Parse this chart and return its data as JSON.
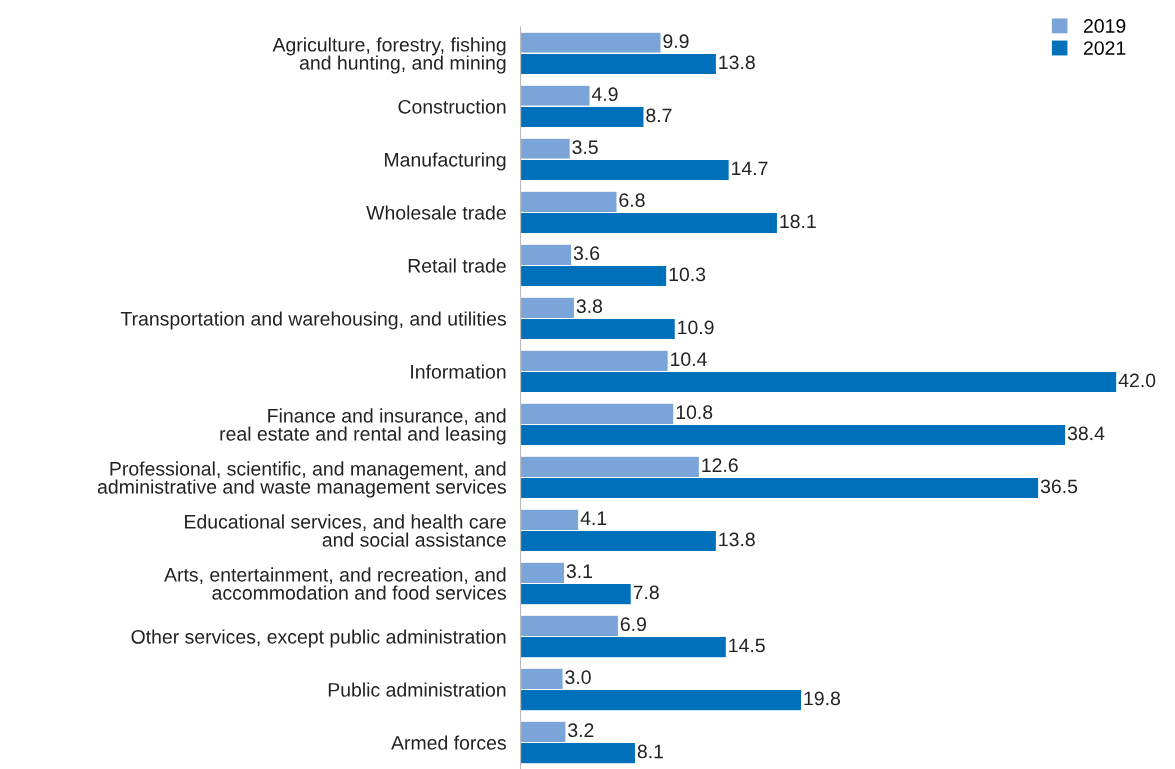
{
  "chart_data": {
    "type": "bar",
    "orientation": "horizontal",
    "legend": "top right",
    "grid": false,
    "categories": [
      "Agriculture, forestry, fishing\nand hunting, and mining",
      "Construction",
      "Manufacturing",
      "Wholesale trade",
      "Retail trade",
      "Transportation and warehousing, and utilities",
      "Information",
      "Finance and insurance, and\nreal estate and rental and leasing",
      "Professional, scientific, and management, and\nadministrative and waste management services",
      "Educational services, and health care\nand social assistance",
      "Arts, entertainment, and recreation, and\naccommodation and food services",
      "Other services, except public administration",
      "Public administration",
      "Armed forces"
    ],
    "series": [
      {
        "name": "2019",
        "color": "#7ba4d8",
        "values": [
          9.9,
          4.9,
          3.5,
          6.8,
          3.6,
          3.8,
          10.4,
          10.8,
          12.6,
          4.1,
          3.1,
          6.9,
          3.0,
          3.2
        ],
        "value_labels": [
          "9.9",
          "4.9",
          "3.5",
          "6.8",
          "3.6",
          "3.8",
          "10.4",
          "10.8",
          "12.6",
          "4.1",
          "3.1",
          "6.9",
          "3.0",
          "3.2"
        ]
      },
      {
        "name": "2021",
        "color": "#0070bb",
        "values": [
          13.8,
          8.7,
          14.7,
          18.1,
          10.3,
          10.9,
          42.0,
          38.4,
          36.5,
          13.8,
          7.8,
          14.5,
          19.8,
          8.1
        ],
        "value_labels": [
          "13.8",
          "8.7",
          "14.7",
          "18.1",
          "10.3",
          "10.9",
          "42.0",
          "38.4",
          "36.5",
          "13.8",
          "7.8",
          "14.5",
          "19.8",
          "8.1"
        ]
      }
    ]
  }
}
